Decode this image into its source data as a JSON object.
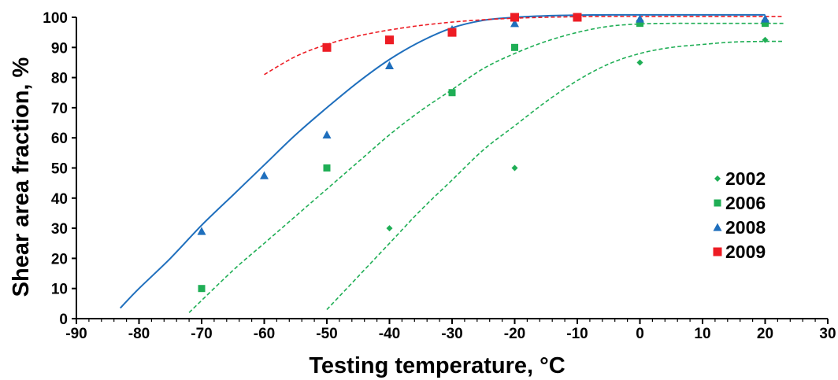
{
  "chart_data": {
    "type": "scatter",
    "title": "",
    "xlabel": "Testing temperature, °C",
    "ylabel": "Shear area fraction, %",
    "xlim": [
      -90,
      30
    ],
    "ylim": [
      0,
      100
    ],
    "xticks": [
      -90,
      -80,
      -70,
      -60,
      -50,
      -40,
      -30,
      -20,
      -10,
      0,
      10,
      20,
      30
    ],
    "yticks": [
      0,
      10,
      20,
      30,
      40,
      50,
      60,
      70,
      80,
      90,
      100
    ],
    "xtick_labels": [
      "-90",
      "-80",
      "-70",
      "-60",
      "-50",
      "-40",
      "-30",
      "-20",
      "-10",
      "0",
      "10",
      "20",
      "30"
    ],
    "ytick_labels": [
      "0",
      "10",
      "20",
      "30",
      "40",
      "50",
      "60",
      "70",
      "80",
      "90",
      "100"
    ],
    "grid": false,
    "legend_position": "right",
    "series": [
      {
        "name": "2002",
        "marker": "diamond",
        "color": "#1fae55",
        "x": [
          -40,
          -20,
          0,
          20
        ],
        "y": [
          30,
          50,
          85,
          92.5
        ],
        "fit": {
          "style": "dashed",
          "color": "#1fae55",
          "x": [
            -50,
            -45,
            -40,
            -35,
            -30,
            -25,
            -20,
            -15,
            -10,
            -5,
            0,
            5,
            10,
            15,
            20,
            23
          ],
          "y": [
            3,
            14,
            25,
            36,
            46,
            56,
            64,
            72,
            79,
            84.5,
            88,
            90,
            91,
            91.8,
            92,
            92
          ]
        }
      },
      {
        "name": "2006",
        "marker": "square",
        "color": "#1fae55",
        "x": [
          -70,
          -50,
          -30,
          -20,
          0,
          20
        ],
        "y": [
          10,
          50,
          75,
          90,
          98,
          98
        ],
        "fit": {
          "style": "dashed",
          "color": "#1fae55",
          "x": [
            -72,
            -65,
            -60,
            -55,
            -50,
            -45,
            -40,
            -35,
            -30,
            -25,
            -20,
            -15,
            -10,
            -5,
            0,
            5,
            10,
            20,
            23
          ],
          "y": [
            2,
            16,
            25,
            34,
            43,
            52,
            61,
            69,
            76,
            83,
            88,
            92,
            95,
            97,
            97.8,
            98,
            98,
            98,
            98
          ]
        }
      },
      {
        "name": "2008",
        "marker": "triangle",
        "color": "#1f6fbd",
        "x": [
          -70,
          -60,
          -50,
          -40,
          -30,
          -20,
          0,
          20
        ],
        "y": [
          29,
          47.5,
          61,
          84,
          96,
          98,
          99.5,
          99.5
        ],
        "fit": {
          "style": "solid",
          "color": "#1f6fbd",
          "x": [
            -83,
            -80,
            -75,
            -70,
            -65,
            -60,
            -55,
            -50,
            -45,
            -40,
            -35,
            -30,
            -25,
            -20,
            -15,
            -10,
            -5,
            0,
            10,
            20
          ],
          "y": [
            3.5,
            10,
            20,
            31,
            41,
            51,
            61,
            70,
            78.5,
            86,
            92,
            96.5,
            99,
            100,
            100.5,
            100.7,
            100.8,
            100.8,
            100.8,
            100.8
          ]
        }
      },
      {
        "name": "2009",
        "marker": "square",
        "color": "#ed1c24",
        "x": [
          -50,
          -40,
          -30,
          -20,
          -10
        ],
        "y": [
          90,
          92.5,
          95,
          100,
          100
        ],
        "fit": {
          "style": "dashed",
          "color": "#ed1c24",
          "x": [
            -60,
            -55,
            -50,
            -45,
            -40,
            -35,
            -30,
            -25,
            -20,
            -15,
            -10,
            -5,
            0,
            10,
            20,
            23
          ],
          "y": [
            81,
            87,
            91,
            93.8,
            95.8,
            97.3,
            98.4,
            99.2,
            99.7,
            100,
            100.2,
            100.3,
            100.3,
            100.3,
            100.3,
            100.3
          ]
        }
      }
    ]
  }
}
